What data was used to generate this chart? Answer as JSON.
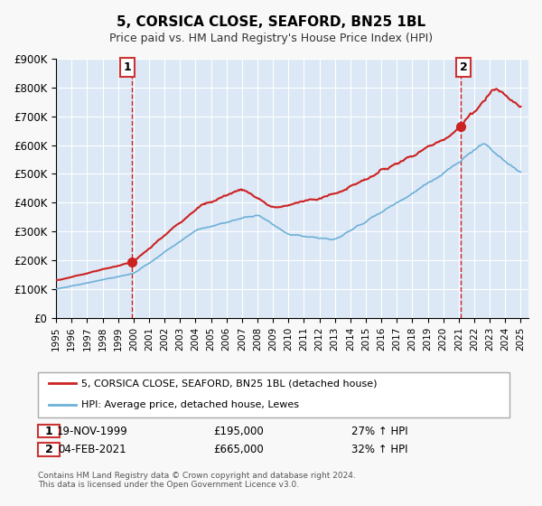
{
  "title": "5, CORSICA CLOSE, SEAFORD, BN25 1BL",
  "subtitle": "Price paid vs. HM Land Registry's House Price Index (HPI)",
  "background_color": "#f0f4f8",
  "plot_bg_color": "#dce8f5",
  "red_line_label": "5, CORSICA CLOSE, SEAFORD, BN25 1BL (detached house)",
  "blue_line_label": "HPI: Average price, detached house, Lewes",
  "annotation1_label": "1",
  "annotation1_date": "19-NOV-1999",
  "annotation1_price": "£195,000",
  "annotation1_hpi": "27% ↑ HPI",
  "annotation2_label": "2",
  "annotation2_date": "04-FEB-2021",
  "annotation2_price": "£665,000",
  "annotation2_hpi": "32% ↑ HPI",
  "footnote": "Contains HM Land Registry data © Crown copyright and database right 2024.\nThis data is licensed under the Open Government Licence v3.0.",
  "ylim": [
    0,
    900000
  ],
  "yticks": [
    0,
    100000,
    200000,
    300000,
    400000,
    500000,
    600000,
    700000,
    800000,
    900000
  ],
  "ytick_labels": [
    "£0",
    "£100K",
    "£200K",
    "£300K",
    "£400K",
    "£500K",
    "£600K",
    "£700K",
    "£800K",
    "£900K"
  ],
  "xlim_start": 1995.0,
  "xlim_end": 2025.5,
  "xticks": [
    1995,
    1996,
    1997,
    1998,
    1999,
    2000,
    2001,
    2002,
    2003,
    2004,
    2005,
    2006,
    2007,
    2008,
    2009,
    2010,
    2011,
    2012,
    2013,
    2014,
    2015,
    2016,
    2017,
    2018,
    2019,
    2020,
    2021,
    2022,
    2023,
    2024,
    2025
  ],
  "marker1_x": 1999.9,
  "marker1_y": 195000,
  "marker2_x": 2021.1,
  "marker2_y": 665000,
  "vline1_x": 1999.9,
  "vline2_x": 2021.1
}
